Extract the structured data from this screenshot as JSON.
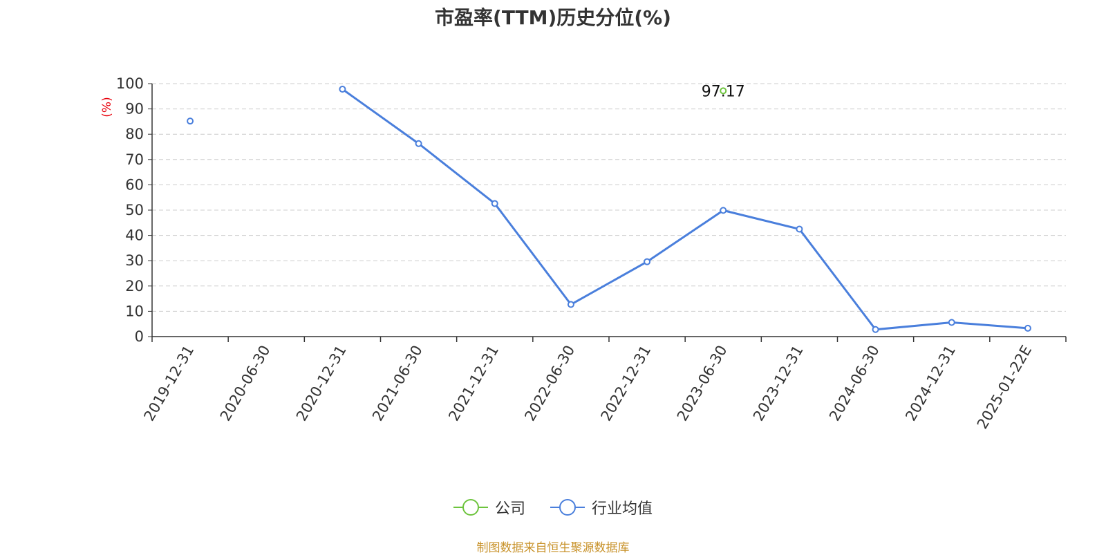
{
  "chart_data": {
    "type": "line",
    "title": "市盈率(TTM)历史分位(%)",
    "ylabel": "(%)",
    "xlabel": "",
    "ylim": [
      0,
      100
    ],
    "yticks": [
      0,
      10,
      20,
      30,
      40,
      50,
      60,
      70,
      80,
      90,
      100
    ],
    "grid": true,
    "legend_position": "bottom",
    "categories": [
      "2019-12-31",
      "2020-06-30",
      "2020-12-31",
      "2021-06-30",
      "2021-12-31",
      "2022-06-30",
      "2022-12-31",
      "2023-06-30",
      "2023-12-31",
      "2024-06-30",
      "2024-12-31",
      "2025-01-22E"
    ],
    "series": [
      {
        "name": "公司",
        "color": "#6dc43d",
        "values": [
          null,
          null,
          null,
          null,
          null,
          null,
          null,
          97.17,
          null,
          null,
          null,
          null
        ],
        "labels": [
          null,
          null,
          null,
          null,
          null,
          null,
          null,
          "97.17",
          null,
          null,
          null,
          null
        ]
      },
      {
        "name": "行业均值",
        "color": "#4a7fdc",
        "values": [
          85.2,
          null,
          97.8,
          76.3,
          52.6,
          12.7,
          29.6,
          49.9,
          42.5,
          2.8,
          5.6,
          3.3
        ]
      }
    ]
  },
  "source_note": "制图数据来自恒生聚源数据库"
}
